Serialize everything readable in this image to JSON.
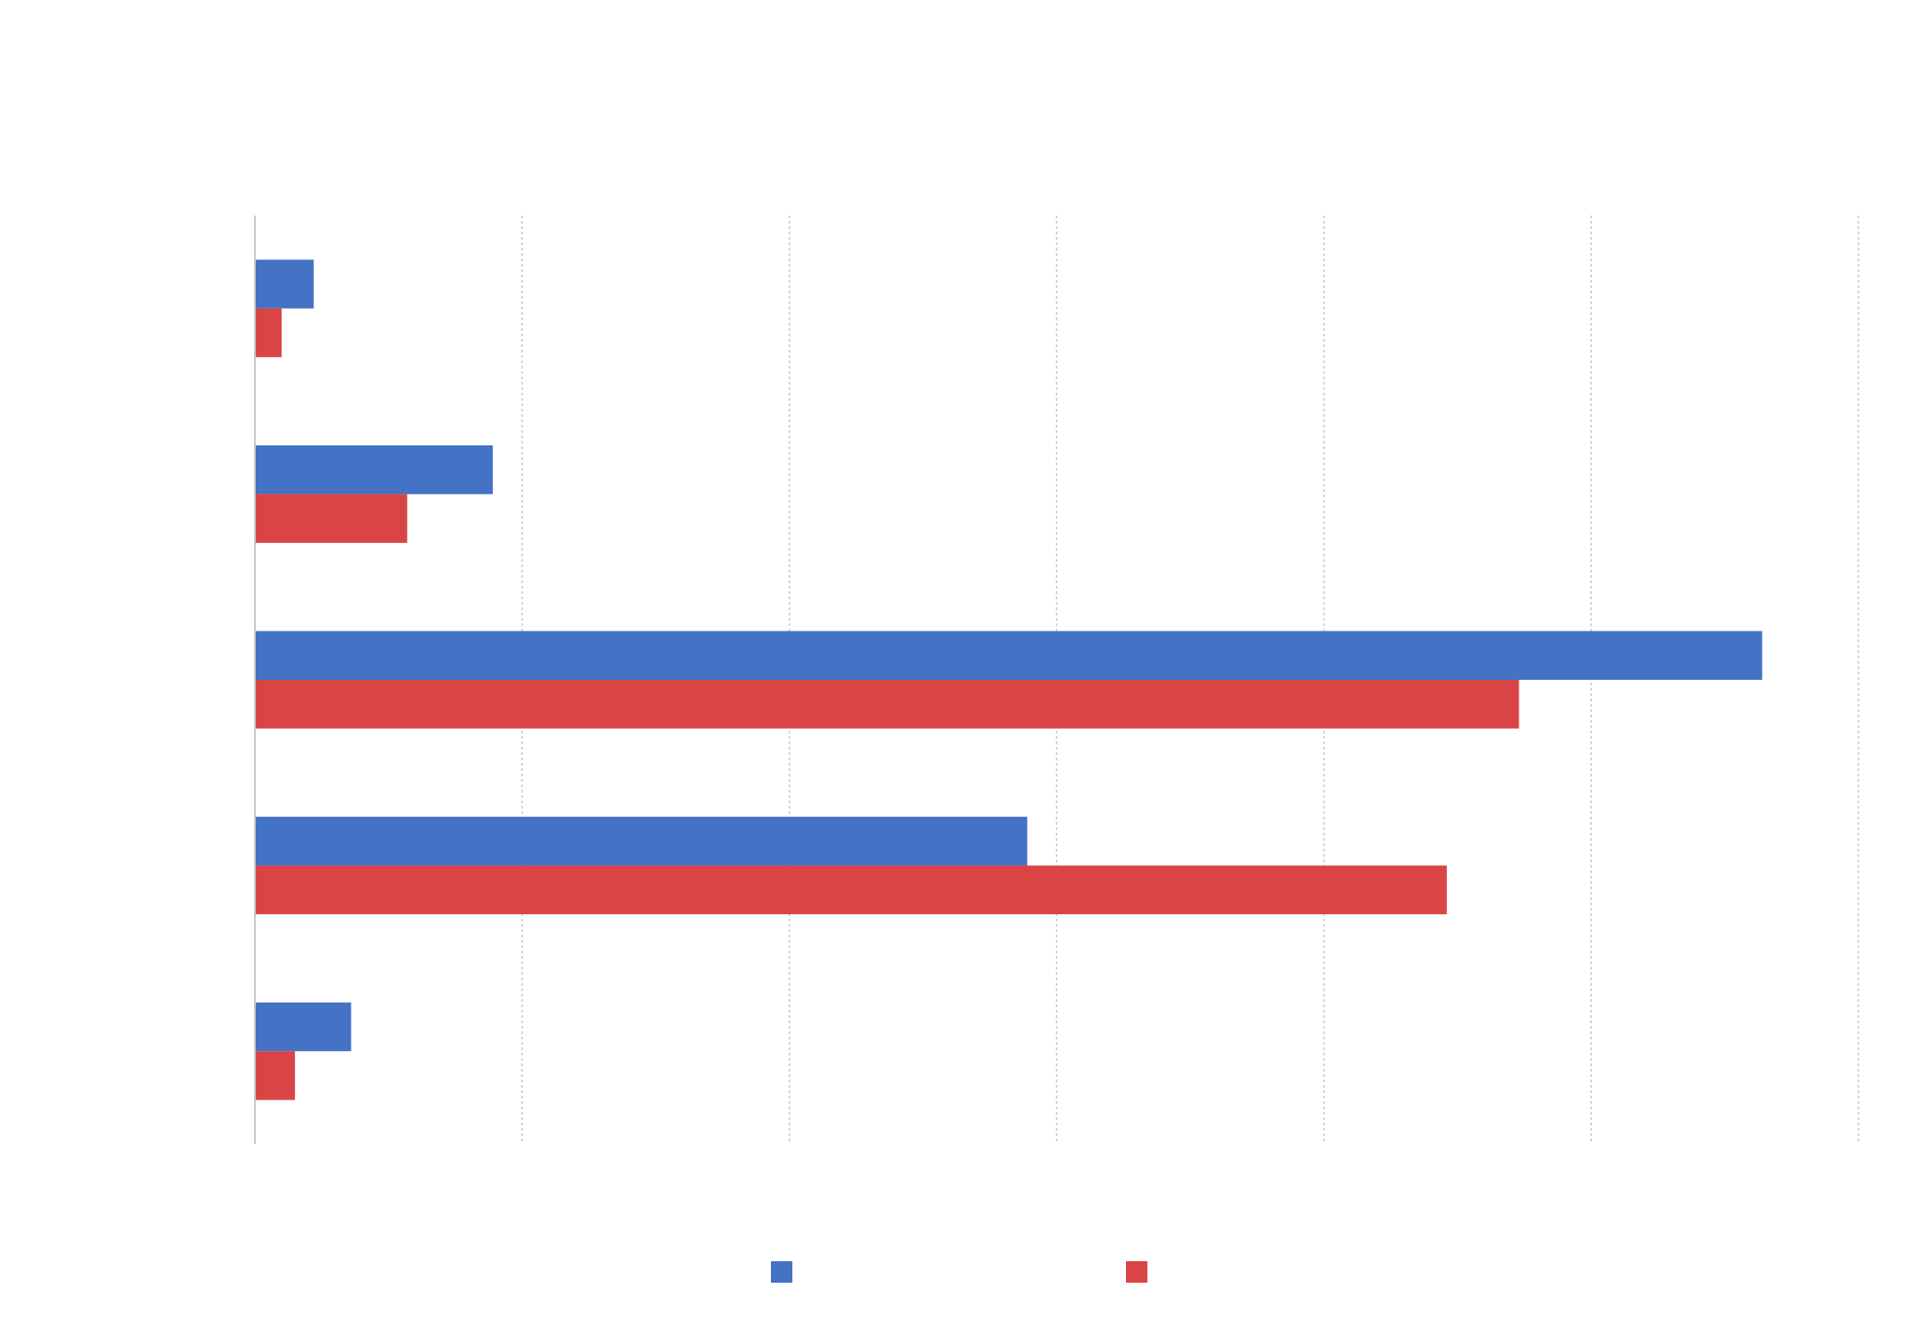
{
  "colors": {
    "series_0": "#4472c4",
    "series_1": "#d94545",
    "grid": "#c8c8c8",
    "axis": "#c8c8c8"
  },
  "chart_data": {
    "type": "bar",
    "orientation": "horizontal",
    "title": "",
    "xlabel": "",
    "ylabel": "",
    "xlim": [
      0,
      6
    ],
    "grid": true,
    "legend": "bottom",
    "categories": [
      "",
      "",
      "",
      "",
      ""
    ],
    "series": [
      {
        "name": "",
        "color": "#4472c4",
        "values": [
          0.22,
          0.89,
          5.64,
          2.89,
          0.36
        ]
      },
      {
        "name": "",
        "color": "#d94545",
        "values": [
          0.1,
          0.57,
          4.73,
          4.46,
          0.15
        ]
      }
    ]
  }
}
